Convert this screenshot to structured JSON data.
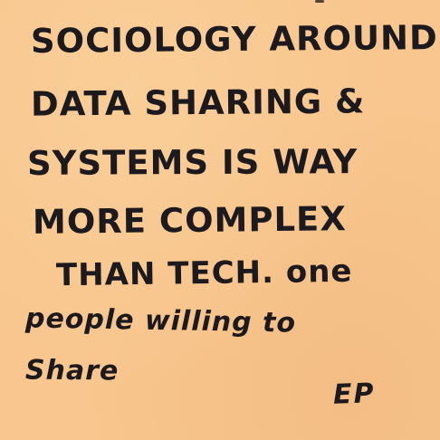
{
  "note": {
    "lines": [
      "SOCIOLOGY AROUND",
      "DATA SHARING &",
      "SYSTEMS IS WAY",
      "MORE COMPLEX",
      "THAN TECH. one",
      "people willing to",
      "Share"
    ],
    "signature": "EP",
    "paper_color": "#f8c68e",
    "ink_color": "#1c1a1e"
  }
}
